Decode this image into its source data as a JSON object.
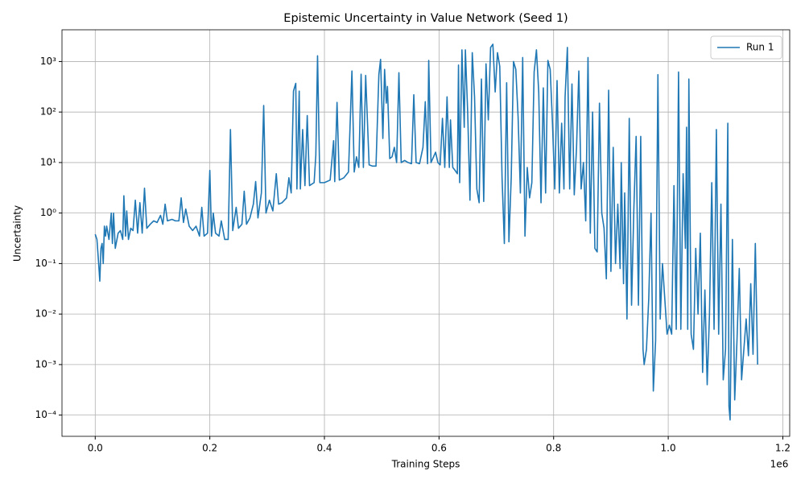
{
  "chart_data": {
    "type": "line",
    "title": "Epistemic Uncertainty in Value Network (Seed 1)",
    "x_label": "Training Steps",
    "y_label": "Uncertainty",
    "x_offset_label": "1e6",
    "xlim": [
      -58000,
      1212000
    ],
    "xticks": [
      {
        "value": 0,
        "label": "0.0"
      },
      {
        "value": 200000,
        "label": "0.2"
      },
      {
        "value": 400000,
        "label": "0.4"
      },
      {
        "value": 600000,
        "label": "0.6"
      },
      {
        "value": 800000,
        "label": "0.8"
      },
      {
        "value": 1000000,
        "label": "1.0"
      },
      {
        "value": 1200000,
        "label": "1.2"
      }
    ],
    "ylim": [
      3.8e-05,
      4250
    ],
    "y_scale": "log",
    "yticks": [
      {
        "value": 0.0001,
        "label": "10⁻⁴"
      },
      {
        "value": 0.001,
        "label": "10⁻³"
      },
      {
        "value": 0.01,
        "label": "10⁻²"
      },
      {
        "value": 0.1,
        "label": "10⁻¹"
      },
      {
        "value": 1,
        "label": "10⁰"
      },
      {
        "value": 10,
        "label": "10¹"
      },
      {
        "value": 100,
        "label": "10²"
      },
      {
        "value": 1000,
        "label": "10³"
      }
    ],
    "grid": true,
    "legend": "upper right",
    "x": [
      0,
      3000,
      6000,
      8000,
      10000,
      12000,
      14000,
      16000,
      18000,
      20000,
      24000,
      28000,
      30000,
      32000,
      35000,
      40000,
      44000,
      48000,
      50000,
      53000,
      55000,
      58000,
      62000,
      66000,
      70000,
      74000,
      78000,
      82000,
      86000,
      90000,
      96000,
      102000,
      108000,
      114000,
      118000,
      122000,
      126000,
      134000,
      140000,
      146000,
      150000,
      154000,
      158000,
      164000,
      170000,
      176000,
      182000,
      186000,
      190000,
      196000,
      200000,
      203000,
      206000,
      210000,
      216000,
      220000,
      226000,
      232000,
      236000,
      240000,
      246000,
      250000,
      256000,
      260000,
      264000,
      270000,
      276000,
      280000,
      284000,
      290000,
      294000,
      298000,
      304000,
      310000,
      316000,
      320000,
      326000,
      334000,
      338000,
      342000,
      346000,
      350000,
      352000,
      356000,
      358000,
      362000,
      366000,
      370000,
      374000,
      382000,
      385000,
      388000,
      392000,
      400000,
      410000,
      416000,
      418000,
      422000,
      426000,
      434000,
      442000,
      448000,
      452000,
      456000,
      460000,
      464000,
      468000,
      472000,
      478000,
      484000,
      490000,
      495000,
      498000,
      502000,
      505000,
      508000,
      510000,
      514000,
      518000,
      522000,
      526000,
      530000,
      534000,
      540000,
      546000,
      552000,
      556000,
      560000,
      566000,
      572000,
      576000,
      580000,
      582000,
      586000,
      594000,
      598000,
      602000,
      606000,
      610000,
      614000,
      618000,
      620000,
      624000,
      628000,
      632000,
      634000,
      636000,
      640000,
      644000,
      646000,
      650000,
      654000,
      658000,
      662000,
      666000,
      670000,
      674000,
      678000,
      682000,
      686000,
      690000,
      694000,
      698000,
      702000,
      706000,
      710000,
      714000,
      718000,
      722000,
      726000,
      730000,
      734000,
      738000,
      742000,
      746000,
      750000,
      754000,
      758000,
      762000,
      766000,
      770000,
      774000,
      778000,
      782000,
      786000,
      790000,
      794000,
      798000,
      802000,
      806000,
      810000,
      814000,
      818000,
      820000,
      824000,
      828000,
      832000,
      836000,
      840000,
      844000,
      848000,
      852000,
      856000,
      860000,
      864000,
      868000,
      872000,
      876000,
      880000,
      884000,
      888000,
      892000,
      896000,
      900000,
      904000,
      908000,
      912000,
      916000,
      918000,
      922000,
      924000,
      928000,
      932000,
      936000,
      940000,
      944000,
      948000,
      952000,
      956000,
      958000,
      962000,
      966000,
      970000,
      974000,
      978000,
      982000,
      986000,
      990000,
      994000,
      998000,
      1002000,
      1006000,
      1010000,
      1014000,
      1018000,
      1022000,
      1026000,
      1030000,
      1032000,
      1034000,
      1036000,
      1040000,
      1044000,
      1048000,
      1052000,
      1056000,
      1060000,
      1064000,
      1068000,
      1072000,
      1076000,
      1080000,
      1084000,
      1088000,
      1092000,
      1096000,
      1100000,
      1104000,
      1106000,
      1108000,
      1112000,
      1116000,
      1120000,
      1124000,
      1128000,
      1132000,
      1136000,
      1140000,
      1144000,
      1148000,
      1152000,
      1156000
    ],
    "series": [
      {
        "name": "Run 1",
        "color": "#1f77b4",
        "values": [
          0.38,
          0.3,
          0.1,
          0.045,
          0.2,
          0.25,
          0.1,
          0.55,
          0.35,
          0.55,
          0.3,
          1.0,
          0.25,
          1.0,
          0.2,
          0.4,
          0.45,
          0.3,
          2.2,
          0.35,
          1.1,
          0.3,
          0.5,
          0.45,
          1.8,
          0.4,
          1.6,
          0.4,
          3.1,
          0.5,
          0.6,
          0.7,
          0.65,
          0.9,
          0.6,
          1.5,
          0.7,
          0.75,
          0.7,
          0.7,
          2.0,
          0.65,
          1.2,
          0.55,
          0.45,
          0.55,
          0.35,
          1.3,
          0.35,
          0.4,
          7.0,
          0.35,
          1.0,
          0.4,
          0.35,
          0.7,
          0.3,
          0.3,
          45,
          0.45,
          1.3,
          0.5,
          0.6,
          2.7,
          0.6,
          0.8,
          1.5,
          4.2,
          0.8,
          2.5,
          135,
          1.0,
          1.8,
          1.1,
          6.0,
          1.5,
          1.6,
          2.0,
          5.0,
          2.5,
          260,
          370,
          3.0,
          260,
          3.0,
          45,
          3.5,
          85,
          3.5,
          4.0,
          14,
          1300,
          4.0,
          4.0,
          4.5,
          27,
          4.2,
          155,
          4.5,
          5.0,
          6.5,
          650,
          6.5,
          13,
          8,
          560,
          8,
          530,
          9,
          8.5,
          8.5,
          550,
          1100,
          30,
          700,
          150,
          320,
          12,
          13,
          20,
          10,
          600,
          10,
          11,
          10,
          9.5,
          220,
          10,
          9.5,
          20,
          160,
          9.5,
          1050,
          10,
          16,
          10,
          9,
          75,
          8,
          200,
          8,
          70,
          8,
          7,
          6,
          850,
          4,
          1700,
          50,
          1700,
          100,
          1.8,
          1500,
          200,
          3,
          1.6,
          450,
          1.7,
          900,
          70,
          1900,
          2200,
          250,
          1500,
          800,
          5,
          0.25,
          380,
          0.27,
          5,
          1000,
          700,
          80,
          2.5,
          1200,
          0.35,
          8,
          2,
          4,
          620,
          1700,
          250,
          1.6,
          300,
          2.5,
          1050,
          700,
          60,
          3,
          420,
          2.5,
          60,
          3,
          200,
          1900,
          3,
          360,
          2.3,
          20,
          650,
          3,
          10,
          0.7,
          1200,
          0.4,
          100,
          0.2,
          0.17,
          150,
          1,
          0.5,
          0.05,
          270,
          0.07,
          20,
          0.1,
          1.5,
          0.08,
          10,
          0.04,
          2.5,
          0.008,
          75,
          0.015,
          1.2,
          33,
          0.015,
          33,
          0.002,
          0.001,
          0.002,
          0.02,
          1.0,
          0.0003,
          0.003,
          550,
          0.008,
          0.1,
          0.02,
          0.004,
          0.006,
          0.004,
          3.5,
          0.005,
          620,
          0.005,
          6,
          0.2,
          50,
          0.005,
          450,
          0.004,
          0.002,
          0.2,
          0.01,
          0.4,
          0.0007,
          0.03,
          0.0004,
          0.01,
          4,
          0.005,
          45,
          0.004,
          1.5,
          0.0005,
          0.002,
          60,
          0.00015,
          8e-05,
          0.3,
          0.0002,
          0.003,
          0.08,
          0.0005,
          0.002,
          0.008,
          0.0015,
          0.04,
          0.0016,
          0.25,
          0.001
        ]
      }
    ]
  }
}
